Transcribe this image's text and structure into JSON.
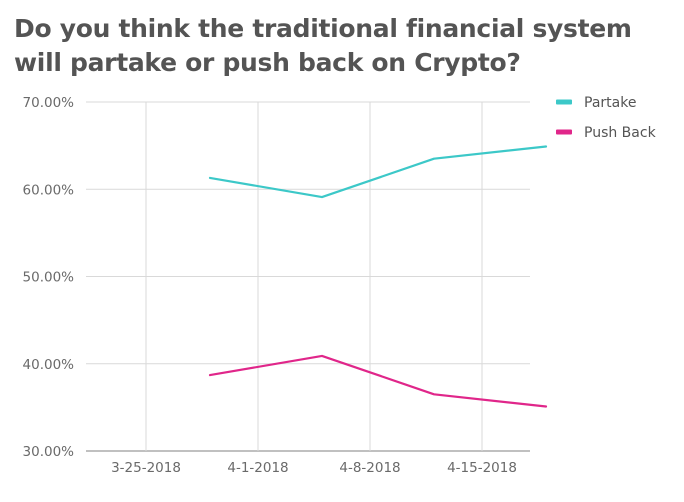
{
  "title_lines": [
    "Do you think the traditional financial system",
    "will partake or push back on Crypto?"
  ],
  "chart_data": {
    "type": "line",
    "title": "Do you think the traditional financial system will partake or push back on Crypto?",
    "x_ticks": [
      "3-25-2018",
      "4-1-2018",
      "4-8-2018",
      "4-15-2018"
    ],
    "y_ticks": [
      "70.00%",
      "60.00%",
      "50.00%",
      "40.00%",
      "30.00%"
    ],
    "ylim": [
      30,
      70
    ],
    "grid": true,
    "legend_position": "top-right",
    "series": [
      {
        "name": "Partake",
        "color": "#3cc8c8",
        "points": [
          {
            "x": "2018-03-29",
            "y": 61.3
          },
          {
            "x": "2018-04-05",
            "y": 59.1
          },
          {
            "x": "2018-04-12",
            "y": 63.5
          },
          {
            "x": "2018-04-19",
            "y": 64.9
          }
        ]
      },
      {
        "name": "Push Back",
        "color": "#e0268a",
        "points": [
          {
            "x": "2018-03-29",
            "y": 38.7
          },
          {
            "x": "2018-04-05",
            "y": 40.9
          },
          {
            "x": "2018-04-12",
            "y": 36.5
          },
          {
            "x": "2018-04-19",
            "y": 35.1
          }
        ]
      }
    ]
  }
}
